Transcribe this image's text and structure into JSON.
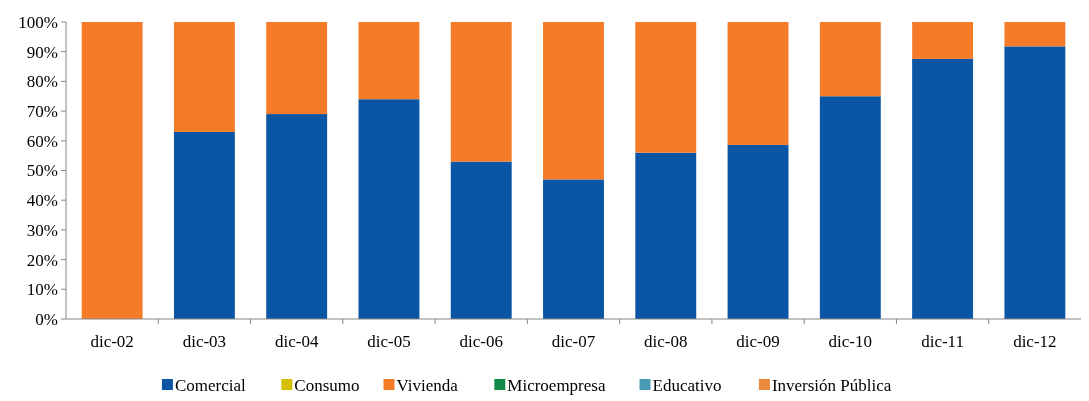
{
  "chart_data": {
    "type": "bar",
    "stacked": true,
    "categories": [
      "dic-02",
      "dic-03",
      "dic-04",
      "dic-05",
      "dic-06",
      "dic-07",
      "dic-08",
      "dic-09",
      "dic-10",
      "dic-11",
      "dic-12"
    ],
    "series": [
      {
        "name": "Comercial",
        "color": "#0a56a4",
        "values": [
          0,
          63,
          69,
          74,
          53,
          47,
          56,
          58.6,
          75,
          87.6,
          91.8
        ]
      },
      {
        "name": "Consumo",
        "color": "#d4c000",
        "values": [
          0,
          0,
          0,
          0,
          0,
          0,
          0,
          0,
          0,
          0,
          0
        ]
      },
      {
        "name": "Vivienda",
        "color": "#f57b28",
        "values": [
          100,
          37,
          31,
          26,
          47,
          53,
          44,
          41.4,
          25,
          12.4,
          8.2
        ]
      },
      {
        "name": "Microempresa",
        "color": "#138a4a",
        "values": [
          0,
          0,
          0,
          0,
          0,
          0,
          0,
          0,
          0,
          0,
          0
        ]
      },
      {
        "name": "Educativo",
        "color": "#4a9ab5",
        "values": [
          0,
          0,
          0,
          0,
          0,
          0,
          0,
          0,
          0,
          0,
          0
        ]
      },
      {
        "name": "Inversión Pública",
        "color": "#e8893e",
        "values": [
          0,
          0,
          0,
          0,
          0,
          0,
          0,
          0,
          0,
          0,
          0
        ]
      }
    ],
    "ylim": [
      0,
      100
    ],
    "yticks": [
      {
        "value": 0,
        "label": "0%"
      },
      {
        "value": 10,
        "label": "10%"
      },
      {
        "value": 20,
        "label": "20%"
      },
      {
        "value": 30,
        "label": "30%"
      },
      {
        "value": 40,
        "label": "40%"
      },
      {
        "value": 50,
        "label": "50%"
      },
      {
        "value": 60,
        "label": "60%"
      },
      {
        "value": 70,
        "label": "70%"
      },
      {
        "value": 80,
        "label": "80%"
      },
      {
        "value": 90,
        "label": "90%"
      },
      {
        "value": 100,
        "label": "100%"
      }
    ],
    "grid": false,
    "legend": "bottom"
  }
}
